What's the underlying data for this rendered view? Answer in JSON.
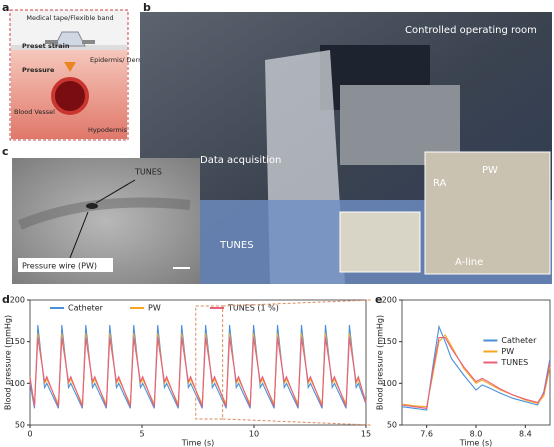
{
  "panel_labels": [
    "a",
    "b",
    "c",
    "d",
    "e"
  ],
  "panel_a": {
    "band": "Medical tape/Flexible band",
    "strain": "Preset strain",
    "layer_top": "Epidermis/ Dermis",
    "pressure": "Pressure",
    "vessel": "Blood Vessel",
    "layer_bottom": "Hypodermis"
  },
  "panel_b": {
    "room": "Controlled operating room",
    "acquisition": "Data acquisition",
    "sensor": "TUNES",
    "inset": [
      "RA",
      "PW",
      "A-line"
    ]
  },
  "panel_c": {
    "sensor": "TUNES",
    "wire": "Pressure wire (PW)"
  },
  "chart_data": [
    {
      "type": "line",
      "xlabel": "Time (s)",
      "ylabel": "Blood pressure (mmHg)",
      "legend": "upper center",
      "xlim": [
        0,
        15
      ],
      "ylim": [
        50,
        200
      ],
      "xticks": [
        0,
        5,
        10,
        15
      ],
      "yticks": [
        50,
        100,
        150,
        200
      ],
      "x": [
        0,
        0.2,
        0.35,
        0.65,
        0.75,
        1.27,
        1.42,
        1.72,
        1.82,
        2.34,
        2.49,
        2.79,
        2.89,
        3.41,
        3.56,
        3.86,
        3.96,
        4.48,
        4.63,
        4.93,
        5.03,
        5.55,
        5.7,
        6.0,
        6.1,
        6.62,
        6.77,
        7.07,
        7.17,
        7.69,
        7.84,
        8.14,
        8.24,
        8.76,
        8.91,
        9.21,
        9.31,
        9.83,
        9.98,
        10.28,
        10.38,
        10.9,
        11.05,
        11.35,
        11.45,
        11.97,
        12.12,
        12.42,
        12.52,
        13.04,
        13.19,
        13.49,
        13.59,
        14.11,
        14.26,
        14.56,
        14.66,
        15
      ],
      "series": [
        {
          "name": "Catheter",
          "color": "#4a90d9",
          "values": [
            100,
            70,
            170,
            95,
            100,
            70,
            170,
            95,
            100,
            70,
            170,
            95,
            100,
            70,
            170,
            95,
            100,
            70,
            170,
            95,
            100,
            70,
            170,
            95,
            100,
            70,
            170,
            95,
            100,
            70,
            170,
            95,
            100,
            70,
            170,
            95,
            100,
            70,
            170,
            95,
            100,
            70,
            170,
            95,
            100,
            70,
            170,
            95,
            100,
            70,
            170,
            95,
            100,
            70,
            170,
            95,
            100,
            75
          ]
        },
        {
          "name": "PW",
          "color": "#f5a623",
          "values": [
            105,
            75,
            160,
            100,
            105,
            75,
            160,
            100,
            105,
            75,
            160,
            100,
            105,
            75,
            160,
            100,
            105,
            75,
            160,
            100,
            105,
            75,
            160,
            100,
            105,
            75,
            160,
            100,
            105,
            75,
            160,
            100,
            105,
            75,
            160,
            100,
            105,
            75,
            160,
            100,
            105,
            75,
            160,
            100,
            105,
            75,
            160,
            100,
            105,
            75,
            160,
            100,
            105,
            75,
            160,
            100,
            105,
            78
          ]
        },
        {
          "name": "TUNES (1 %)",
          "color": "#e8607a",
          "values": [
            108,
            72,
            155,
            102,
            108,
            72,
            155,
            102,
            108,
            72,
            155,
            102,
            108,
            72,
            155,
            102,
            108,
            72,
            155,
            102,
            108,
            72,
            155,
            102,
            108,
            72,
            155,
            102,
            108,
            72,
            155,
            102,
            108,
            72,
            155,
            102,
            108,
            72,
            155,
            102,
            108,
            72,
            155,
            102,
            108,
            72,
            155,
            102,
            108,
            72,
            155,
            102,
            108,
            72,
            155,
            102,
            108,
            76
          ]
        }
      ]
    },
    {
      "type": "line",
      "xlabel": "Time (s)",
      "ylabel": "Blood pressure (mmHg)",
      "legend": "center right",
      "xlim": [
        7.4,
        8.6
      ],
      "ylim": [
        50,
        200
      ],
      "xticks": [
        7.6,
        {
          "value": 8,
          "label": "8.0"
        },
        8.4
      ],
      "yticks": [
        50,
        100,
        150,
        200
      ],
      "x": [
        7.4,
        7.5,
        7.6,
        7.65,
        7.7,
        7.75,
        7.8,
        7.9,
        8.0,
        8.05,
        8.1,
        8.2,
        8.3,
        8.4,
        8.5,
        8.55,
        8.6
      ],
      "series": [
        {
          "name": "Catheter",
          "color": "#4a90d9",
          "values": [
            72,
            70,
            68,
            120,
            168,
            150,
            130,
            110,
            92,
            98,
            95,
            88,
            82,
            78,
            74,
            90,
            130
          ]
        },
        {
          "name": "PW",
          "color": "#f5a623",
          "values": [
            75,
            73,
            72,
            110,
            150,
            158,
            145,
            118,
            100,
            104,
            100,
            92,
            86,
            80,
            76,
            85,
            120
          ]
        },
        {
          "name": "TUNES",
          "color": "#e8607a",
          "values": [
            74,
            72,
            70,
            115,
            155,
            155,
            142,
            120,
            102,
            106,
            102,
            93,
            86,
            81,
            77,
            88,
            125
          ]
        }
      ]
    }
  ]
}
